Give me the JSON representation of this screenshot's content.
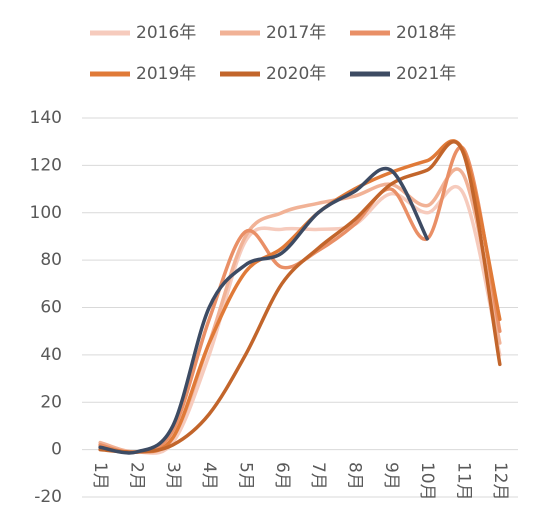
{
  "chart_data": {
    "type": "line",
    "categories": [
      "1月",
      "2月",
      "3月",
      "4月",
      "5月",
      "6月",
      "7月",
      "8月",
      "9月",
      "10月",
      "11月",
      "12月"
    ],
    "series": [
      {
        "name": "2016年",
        "color": "#f6cbbd",
        "values": [
          2,
          -1,
          3,
          40,
          88,
          93,
          93,
          95,
          108,
          100,
          108,
          40
        ]
      },
      {
        "name": "2017年",
        "color": "#f1b296",
        "values": [
          3,
          -1,
          5,
          45,
          90,
          100,
          104,
          107,
          112,
          103,
          116,
          45
        ]
      },
      {
        "name": "2018年",
        "color": "#e98f66",
        "values": [
          2,
          -1,
          8,
          55,
          92,
          77,
          84,
          95,
          110,
          89,
          127,
          50
        ]
      },
      {
        "name": "2019年",
        "color": "#e07a38",
        "values": [
          1,
          -1,
          5,
          45,
          75,
          85,
          100,
          110,
          117,
          122,
          126,
          55
        ]
      },
      {
        "name": "2020年",
        "color": "#c2652b",
        "values": [
          0,
          -1,
          2,
          15,
          40,
          70,
          85,
          97,
          112,
          118,
          125,
          36
        ]
      },
      {
        "name": "2021年",
        "color": "#3d4b63",
        "values": [
          1,
          -1,
          10,
          60,
          78,
          83,
          100,
          109,
          118,
          89,
          null,
          null
        ]
      }
    ],
    "ylim": [
      -20,
      140
    ],
    "yticks": [
      -20,
      0,
      20,
      40,
      60,
      80,
      100,
      120,
      140
    ],
    "grid": true
  }
}
